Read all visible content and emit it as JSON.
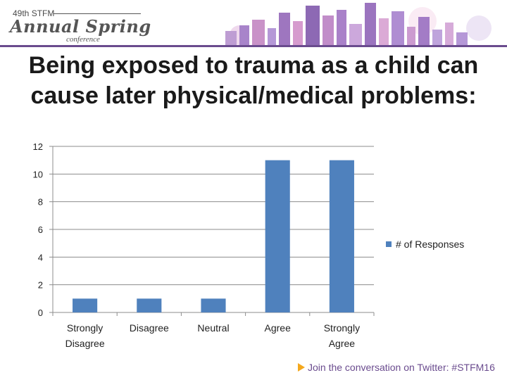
{
  "header": {
    "logo_edition": "49th STFM",
    "logo_main": "Annual Spring",
    "logo_sub": "conference",
    "accent_color": "#6a4b8e"
  },
  "chart_data": {
    "type": "bar",
    "title": "Being exposed to trauma as a child can cause later physical/medical problems:",
    "categories": [
      [
        "Strongly",
        "Disagree"
      ],
      [
        "Disagree"
      ],
      [
        "Neutral"
      ],
      [
        "Agree"
      ],
      [
        "Strongly",
        "Agree"
      ]
    ],
    "series": [
      {
        "name": "# of Responses",
        "values": [
          1,
          1,
          1,
          11,
          11
        ],
        "color": "#4f81bd"
      }
    ],
    "ylim": [
      0,
      12
    ],
    "yticks": [
      0,
      2,
      4,
      6,
      8,
      10,
      12
    ],
    "grid": true,
    "legend": "right"
  },
  "footer": {
    "text": "Join the conversation on Twitter: #STFM16",
    "icon": "play-icon"
  }
}
